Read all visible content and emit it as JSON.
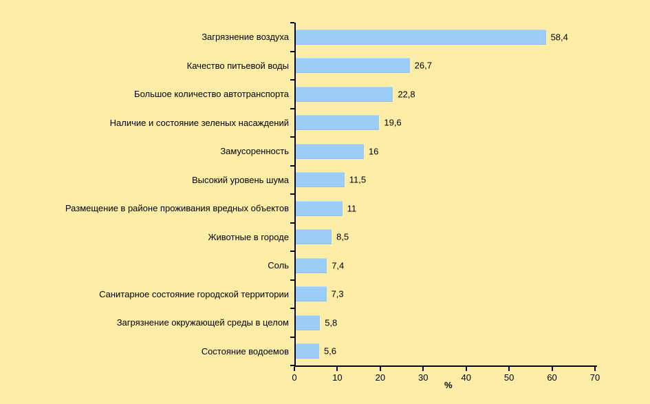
{
  "colors": {
    "background": "#feeda6",
    "bar": "#9ccdf8",
    "bar_border": "#b9dcfa",
    "axis": "#000000",
    "text": "#000000"
  },
  "chart_data": {
    "type": "bar",
    "orientation": "horizontal",
    "title": "",
    "xlabel": "%",
    "ylabel": "",
    "xlim": [
      0,
      70
    ],
    "x_ticks": [
      0,
      10,
      20,
      30,
      40,
      50,
      60,
      70
    ],
    "grid": false,
    "legend": false,
    "categories": [
      "Загрязнение воздуха",
      "Качество питьевой воды",
      "Большое количество автотранспорта",
      "Наличие и состояние зеленых насаждений",
      "Замусоренность",
      "Высокий уровень шума",
      "Размещение в районе проживания вредных объектов",
      "Животные в городе",
      "Соль",
      "Санитарное состояние городской территории",
      "Загрязнение окружающей среды в целом",
      "Состояние водоемов"
    ],
    "values": [
      58.4,
      26.7,
      22.8,
      19.6,
      16,
      11.5,
      11,
      8.5,
      7.4,
      7.3,
      5.8,
      5.6
    ],
    "value_labels": [
      "58,4",
      "26,7",
      "22,8",
      "19,6",
      "16",
      "11,5",
      "11",
      "8,5",
      "7,4",
      "7,3",
      "5,8",
      "5,6"
    ]
  }
}
